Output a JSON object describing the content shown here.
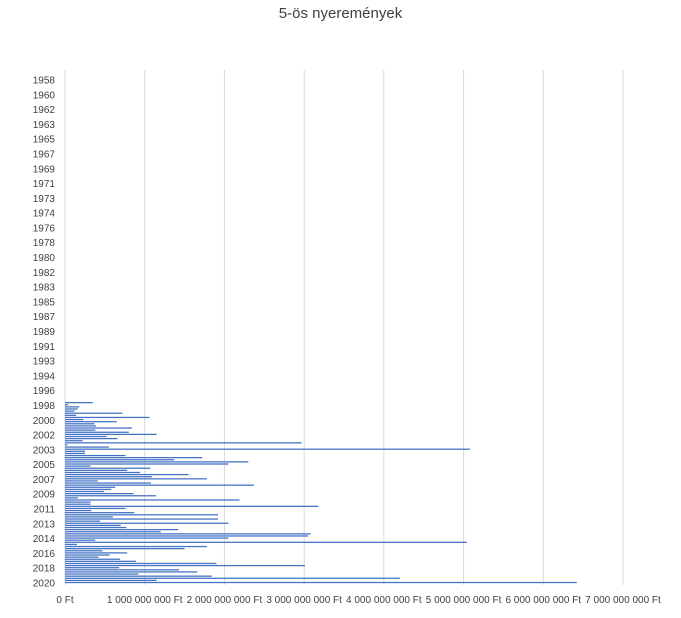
{
  "chart_data": {
    "type": "bar",
    "orientation": "horizontal",
    "title": "5-ös nyeremények",
    "xlabel": "",
    "ylabel": "",
    "xlim": [
      0,
      7000000000
    ],
    "x_tick_labels": [
      "0 Ft",
      "1 000 000 000 Ft",
      "2 000 000 000 Ft",
      "3 000 000 000 Ft",
      "4 000 000 000 Ft",
      "5 000 000 000 Ft",
      "6 000 000 000 Ft",
      "7 000 000 000 Ft"
    ],
    "y_tick_labels": [
      "1958",
      "1960",
      "1962",
      "1963",
      "1965",
      "1967",
      "1969",
      "1971",
      "1973",
      "1974",
      "1976",
      "1978",
      "1980",
      "1982",
      "1983",
      "1985",
      "1987",
      "1989",
      "1991",
      "1993",
      "1994",
      "1996",
      "1998",
      "2000",
      "2002",
      "2003",
      "2005",
      "2007",
      "2009",
      "2011",
      "2013",
      "2014",
      "2016",
      "2018",
      "2020"
    ],
    "grid": true,
    "legend": "none",
    "bar_color": "#4472c4",
    "values": [
      350000000,
      40000000,
      180000000,
      160000000,
      120000000,
      720000000,
      140000000,
      1060000000,
      230000000,
      650000000,
      370000000,
      390000000,
      840000000,
      380000000,
      800000000,
      1150000000,
      520000000,
      660000000,
      220000000,
      2970000000,
      30000000,
      550000000,
      5080000000,
      250000000,
      250000000,
      760000000,
      1720000000,
      1370000000,
      2300000000,
      2050000000,
      320000000,
      1070000000,
      780000000,
      940000000,
      1550000000,
      1090000000,
      1780000000,
      410000000,
      1080000000,
      2370000000,
      630000000,
      580000000,
      490000000,
      860000000,
      1140000000,
      160000000,
      2190000000,
      320000000,
      320000000,
      3180000000,
      760000000,
      330000000,
      870000000,
      1920000000,
      600000000,
      1920000000,
      440000000,
      2050000000,
      700000000,
      770000000,
      1420000000,
      1200000000,
      3080000000,
      3050000000,
      2050000000,
      380000000,
      5040000000,
      150000000,
      1780000000,
      1500000000,
      470000000,
      780000000,
      560000000,
      420000000,
      690000000,
      890000000,
      1900000000,
      3010000000,
      680000000,
      1430000000,
      1660000000,
      920000000,
      1840000000,
      4200000000,
      1150000000,
      6420000000
    ]
  }
}
